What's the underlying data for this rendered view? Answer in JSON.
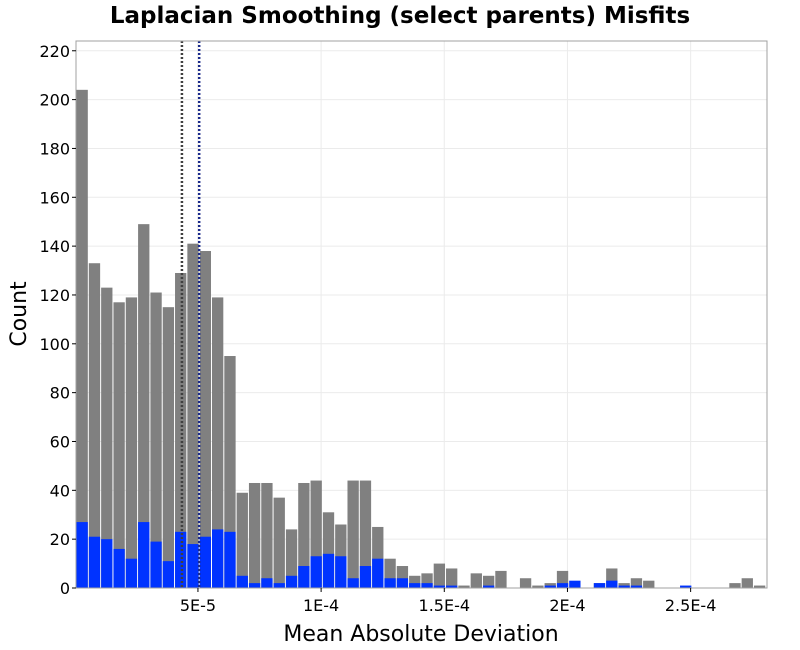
{
  "chart_data": {
    "type": "bar",
    "title": "Laplacian Smoothing (select parents) Misfits",
    "xlabel": "Mean Absolute Deviation",
    "ylabel": "Count",
    "xlim": [
      5e-07,
      0.000281
    ],
    "ylim": [
      0,
      224
    ],
    "bin_width": 5e-06,
    "x_ticks": [
      {
        "value": 5e-05,
        "label": "5E-5"
      },
      {
        "value": 0.0001,
        "label": "1E-4"
      },
      {
        "value": 0.00015,
        "label": "1.5E-4"
      },
      {
        "value": 0.0002,
        "label": "2E-4"
      },
      {
        "value": 0.00025,
        "label": "2.5E-4"
      }
    ],
    "y_ticks": [
      0,
      20,
      40,
      60,
      80,
      100,
      120,
      140,
      160,
      180,
      200,
      220
    ],
    "grid": true,
    "legend": "none",
    "colors": {
      "all": "#808080",
      "subset": "#0033ff",
      "line_1": "#404040",
      "line_2": "#1a2a8a",
      "grid": "#ebebeb",
      "frame": "#a0a0a0"
    },
    "bin_starts": [
      5e-07,
      5.5e-06,
      1.05e-05,
      1.55e-05,
      2.05e-05,
      2.55e-05,
      3.05e-05,
      3.55e-05,
      4.05e-05,
      4.55e-05,
      5.05e-05,
      5.55e-05,
      6.05e-05,
      6.55e-05,
      7.05e-05,
      7.55e-05,
      8.05e-05,
      8.55e-05,
      9.05e-05,
      9.55e-05,
      0.0001005,
      0.0001055,
      0.0001105,
      0.0001155,
      0.0001205,
      0.0001255,
      0.0001305,
      0.0001355,
      0.0001405,
      0.0001455,
      0.0001505,
      0.0001555,
      0.0001605,
      0.0001655,
      0.0001705,
      0.0001755,
      0.0001805,
      0.0001855,
      0.0001905,
      0.0001955,
      0.0002005,
      0.0002055,
      0.0002105,
      0.0002155,
      0.0002205,
      0.0002255,
      0.0002305,
      0.0002355,
      0.0002405,
      0.0002455,
      0.0002505,
      0.0002555,
      0.0002605,
      0.0002655,
      0.0002705,
      0.0002755
    ],
    "series": [
      {
        "values": [
          204,
          133,
          123,
          117,
          119,
          149,
          121,
          115,
          129,
          141,
          138,
          119,
          95,
          39,
          43,
          43,
          37,
          24,
          43,
          44,
          31,
          26,
          44,
          44,
          25,
          12,
          9,
          5,
          6,
          10,
          8,
          1,
          6,
          5,
          7,
          0,
          4,
          1,
          2,
          7,
          0,
          0,
          2,
          8,
          2,
          4,
          3,
          0,
          0,
          0,
          0,
          0,
          0,
          2,
          4,
          1
        ]
      },
      {
        "values": [
          27,
          21,
          20,
          16,
          12,
          27,
          19,
          11,
          23,
          18,
          21,
          24,
          23,
          5,
          2,
          4,
          2,
          5,
          9,
          13,
          14,
          13,
          4,
          9,
          12,
          4,
          4,
          2,
          2,
          1,
          1,
          0,
          0,
          1,
          0,
          0,
          0,
          0,
          1,
          2,
          3,
          0,
          2,
          3,
          1,
          1,
          0,
          0,
          0,
          1,
          0,
          0,
          0,
          0,
          0,
          0
        ]
      }
    ],
    "vertical_lines": [
      {
        "x": 4.35e-05
      },
      {
        "x": 5.05e-05
      }
    ]
  }
}
